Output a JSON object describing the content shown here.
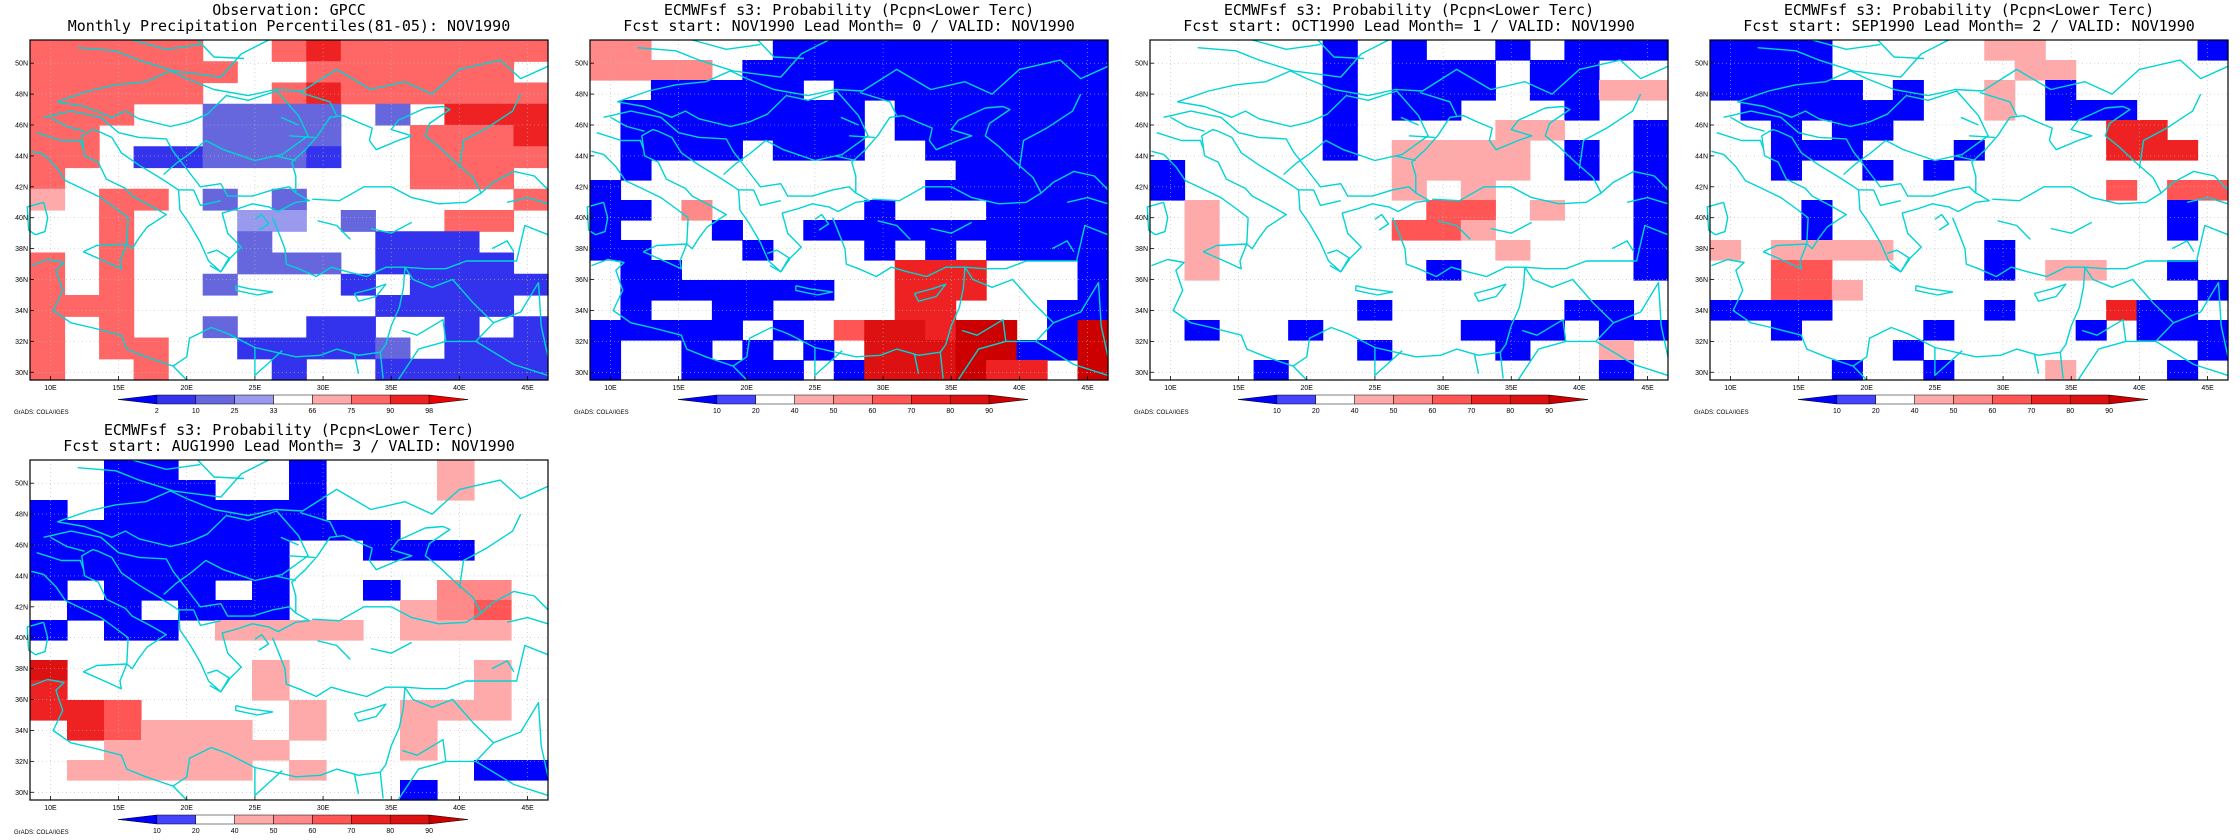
{
  "tick_labels": {
    "lon": [
      "10E",
      "15E",
      "20E",
      "25E",
      "30E",
      "35E",
      "40E",
      "45E"
    ],
    "lat": [
      "30N",
      "32N",
      "34N",
      "36N",
      "38N",
      "40N",
      "42N",
      "44N",
      "46N",
      "48N",
      "50N"
    ]
  },
  "credit": "GrADS: COLA/IGES",
  "palettes": {
    "percentile": {
      "colors": [
        "#0000ff",
        "#3333ee",
        "#6666dd",
        "#9999ee",
        "#ffffff",
        "#ffaaaa",
        "#ff6666",
        "#ee2222",
        "#ee0000"
      ],
      "labels": [
        "2",
        "10",
        "25",
        "33",
        "66",
        "75",
        "90",
        "98"
      ]
    },
    "probability": {
      "colors": [
        "#0000ff",
        "#4444ff",
        "#ffffff",
        "#ffaaaa",
        "#ff8888",
        "#ff5555",
        "#ee2222",
        "#dd1111",
        "#cc0000"
      ],
      "labels": [
        "10",
        "20",
        "40",
        "50",
        "60",
        "70",
        "80",
        "90"
      ]
    }
  },
  "panels": [
    {
      "title1": "Observation: GPCC",
      "title2": "Monthly Precipitation Percentiles(81-05): NOV1990",
      "palette": "percentile",
      "grid": [
        "66666..67666666",
        "666666..666666.",
        "66666..67666666",
        "666..2222.2.777",
        "66...2222..6667",
        "66.112221..6666",
        "6..........666.",
        "5.66.2.2......6",
        "..6...33.2..66.",
        "..6...2...111..",
        "6.6...222.1111.",
        "6.6..2...1.1111",
        "666.......1111.",
        "6.6..2..11..1.1",
        "6.66..11112.111",
        "6..6...1..11111"
      ]
    },
    {
      "title1": "ECMWFsf s3: Probability (Pcpn<Lower Terc)",
      "title2": "Fcst start: NOV1990  Lead Month= 0 / VALID: NOV1990",
      "palette": "probability",
      "grid": [
        "44....00000000000",
        "4444.000000000000",
        "..00000.000000000",
        ".00000000.0000000",
        ".00000000.0000000",
        ".0000.000..000000",
        ".0..........00000",
        "0..........000000",
        "00.4.....0...0000",
        "0...0..0000000000",
        "00...0...0.0.0000",
        ".00.......666...0",
        ".0000000..666...0",
        ".0..00....66...00",
        "00000.0.577688.08",
        "0..0.0.0.77788008",
        "0..0000.0777866.8"
      ]
    },
    {
      "title1": "ECMWFsf s3: Probability (Pcpn<Lower Terc)",
      "title2": "Fcst start: OCT1990  Lead Month= 1 / VALID: NOV1990",
      "palette": "probability",
      "grid": [
        ".....0.0..0.000",
        ".....0.000.00..",
        ".....0.000.0033",
        ".....0.00...0..",
        ".....0....33..0",
        ".....0.3333.0.0",
        "0......3333.0.0",
        "0......3.3....0",
        ".3......55.3..0",
        ".3.....553....0",
        ".3........3...0",
        ".3......0.....0",
        "...............",
        "......0.....00.",
        ".0..0....000.00",
        "......0...0..3.",
        "...0.........0."
      ]
    },
    {
      "title1": "ECMWFsf s3: Probability (Pcpn<Lower Terc)",
      "title2": "Fcst start: SEP1990  Lead Month= 2 / VALID: NOV1990",
      "palette": "probability",
      "grid": [
        "0000.....33.....0",
        "0000......33.....",
        "00000.0..3.0.....",
        ".000000..3.000...",
        "..0.00.......66..",
        "..000...0....666.",
        "..0..0.0.........",
        ".............5.55",
        "...0...........0.",
        "...0...........0.",
        "3.3333...0.......",
        "..55.....0.33..0.",
        "..553...........0",
        "0000.....0...600",
        "..0....0....0.000",
        "......0.........0",
        "....0..0...3...0."
      ]
    },
    {
      "title1": "ECMWFsf s3: Probability (Pcpn<Lower Terc)",
      "title2": "Fcst start: AUG1990  Lead Month= 3 / VALID: NOV1990",
      "palette": "probability",
      "grid": [
        "..00...0...3..",
        "..000..0...3..",
        "0.000000......",
        "0000000000....",
        "0000000..000..",
        "0000000.......",
        "0.000.0..0.44.",
        ".00.000...345.",
        "0.00.3333.333.",
        "..............",
        "7.....3.....3.",
        "6.....3.....3.",
        "665....3..333.",
        ".65333.3..3...",
        "..33333...3...",
        ".33333.3....00",
        "..........0..."
      ]
    }
  ]
}
